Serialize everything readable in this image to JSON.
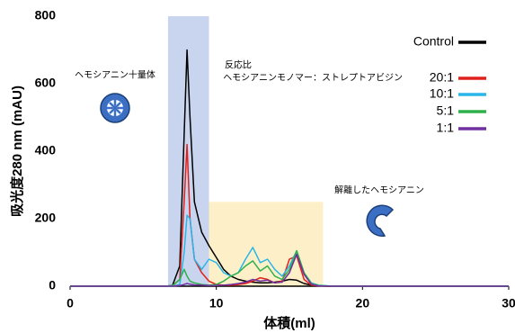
{
  "chart_data": {
    "type": "line",
    "xlabel": "体積(ml)",
    "ylabel": "吸光度280 nm (mAU)",
    "annotations": [
      "ヘモシアニン十量体",
      "反応比",
      "ヘモシアニンモノマー：ストレプトアビジン",
      "解離したヘモシアニン"
    ],
    "regions": [
      {
        "x": [
          6.7,
          9.5
        ],
        "y": 800,
        "color": "#c9d5ef"
      },
      {
        "x": [
          9.5,
          17.3
        ],
        "y": 250,
        "color": "#fdf0c8"
      }
    ],
    "x": [
      0,
      5,
      6.5,
      7,
      7.5,
      7.8,
      8,
      8.2,
      8.5,
      9,
      9.5,
      10,
      10.5,
      11,
      11.5,
      12,
      12.5,
      13,
      13.5,
      14,
      14.5,
      15,
      15.5,
      16,
      16.5,
      17,
      18,
      20,
      25,
      30
    ],
    "series": [
      {
        "name": "Control",
        "color": "#000000",
        "values": [
          0,
          0,
          0,
          2,
          60,
          450,
          700,
          500,
          250,
          160,
          120,
          85,
          50,
          30,
          20,
          15,
          12,
          10,
          10,
          12,
          15,
          20,
          18,
          8,
          3,
          1,
          0,
          0,
          0,
          0
        ]
      },
      {
        "name": "20:1",
        "color": "#e0201b",
        "values": [
          0,
          0,
          0,
          1,
          20,
          250,
          420,
          200,
          80,
          40,
          15,
          5,
          3,
          3,
          5,
          8,
          15,
          25,
          20,
          10,
          15,
          80,
          90,
          20,
          3,
          1,
          0,
          0,
          0,
          0
        ]
      },
      {
        "name": "10:1",
        "color": "#29b6e8",
        "values": [
          0,
          0,
          0,
          0,
          5,
          100,
          210,
          200,
          80,
          50,
          80,
          70,
          40,
          30,
          40,
          80,
          115,
          70,
          80,
          50,
          30,
          60,
          105,
          40,
          10,
          3,
          0,
          0,
          0,
          0
        ]
      },
      {
        "name": "5:1",
        "color": "#2fb04a",
        "values": [
          0,
          0,
          0,
          2,
          20,
          50,
          30,
          15,
          10,
          5,
          3,
          5,
          15,
          30,
          40,
          60,
          75,
          45,
          60,
          30,
          20,
          50,
          105,
          40,
          8,
          2,
          0,
          0,
          0,
          0
        ]
      },
      {
        "name": "1:1",
        "color": "#7030a0",
        "values": [
          0,
          0,
          0,
          0,
          2,
          5,
          8,
          6,
          4,
          3,
          2,
          2,
          3,
          5,
          8,
          12,
          20,
          15,
          18,
          10,
          12,
          40,
          95,
          35,
          6,
          1,
          0,
          0,
          0,
          0
        ]
      }
    ],
    "xlim": [
      0,
      30
    ],
    "ylim": [
      0,
      800
    ],
    "xticks": [
      0,
      10,
      20,
      30
    ],
    "yticks": [
      0,
      200,
      400,
      600,
      800
    ],
    "grid": false
  }
}
